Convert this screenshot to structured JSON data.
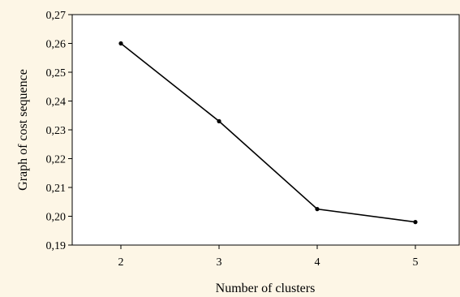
{
  "chart_data": {
    "type": "line",
    "title": "",
    "xlabel": "Number of clusters",
    "ylabel": "Graph of cost sequence",
    "x": [
      "2",
      "3",
      "4",
      "5"
    ],
    "series": [
      {
        "values": [
          0.26,
          0.233,
          0.2025,
          0.198
        ]
      }
    ],
    "ylim": [
      0.19,
      0.27
    ],
    "yticks": [
      "0,19",
      "0,20",
      "0,21",
      "0,22",
      "0,23",
      "0,24",
      "0,25",
      "0,26",
      "0,27"
    ],
    "grid": false,
    "legend": "none",
    "colors": {
      "background": "#fdf6e6",
      "plot_background": "#ffffff",
      "line": "#000000"
    }
  }
}
